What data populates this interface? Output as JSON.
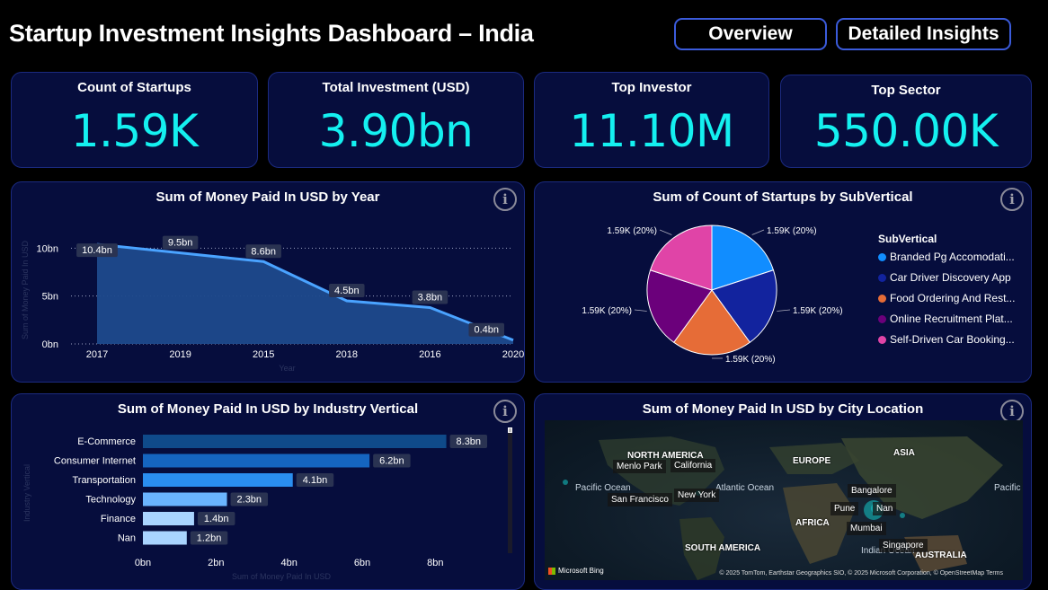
{
  "header": {
    "title": "Startup Investment Insights Dashboard – India",
    "nav": [
      "Overview",
      "Detailed Insights"
    ]
  },
  "kpis": [
    {
      "label": "Count of Startups",
      "value": "1.59K"
    },
    {
      "label": "Total Investment (USD)",
      "value": "3.90bn"
    },
    {
      "label": "Top Investor",
      "value": "11.10M"
    },
    {
      "label": "Top Sector",
      "value": "550.00K"
    }
  ],
  "info_glyph": "i",
  "colors": {
    "background": "#000000",
    "card": "#060d3d",
    "accent": "#14f0f0",
    "line": "#4aa3ff",
    "area": "#1e4a8c"
  },
  "charts": {
    "year": {
      "title": "Sum of Money Paid In USD by Year",
      "xlabel": "Year",
      "ylabel": "Sum of Money Paid In USD"
    },
    "subvertical": {
      "title": "Sum of Count of Startups by SubVertical",
      "legend_title": "SubVertical"
    },
    "vertical": {
      "title": "Sum of Money Paid In USD by Industry Vertical",
      "xlabel": "Sum of Money Paid In USD",
      "ylabel": "Industry Vertical"
    },
    "map": {
      "title": "Sum of Money Paid In USD by City Location",
      "continents": [
        "NORTH AMERICA",
        "EUROPE",
        "ASIA",
        "AFRICA",
        "SOUTH AMERICA",
        "AUSTRALIA"
      ],
      "oceans": [
        "Pacific Ocean",
        "Atlantic Ocean",
        "Indian Ocean",
        "Pacific Ocean"
      ],
      "cities": [
        "Menlo Park",
        "California",
        "San Francisco",
        "New York",
        "Bangalore",
        "Pune",
        "Nan",
        "Mumbai",
        "Singapore"
      ],
      "credit": "© 2025 TomTom, Earthstar Geographics SIO, © 2025 Microsoft Corporation, © OpenStreetMap  Terms",
      "logo": "Microsoft Bing"
    }
  },
  "chart_data": [
    {
      "type": "area",
      "title": "Sum of Money Paid In USD by Year",
      "xlabel": "Year",
      "ylabel": "Sum of Money Paid In USD",
      "categories": [
        "2017",
        "2019",
        "2015",
        "2018",
        "2016",
        "2020"
      ],
      "values": [
        10.4,
        9.5,
        8.6,
        4.5,
        3.8,
        0.4
      ],
      "data_labels": [
        "10.4bn",
        "9.5bn",
        "8.6bn",
        "4.5bn",
        "3.8bn",
        "0.4bn"
      ],
      "yticks": [
        "0bn",
        "5bn",
        "10bn"
      ],
      "ylim": [
        0,
        12
      ],
      "grid": true
    },
    {
      "type": "pie",
      "title": "Sum of Count of Startups by SubVertical",
      "legend_title": "SubVertical",
      "legend_position": "right",
      "slices": [
        {
          "name": "Branded Pg Accomodati...",
          "value": 20,
          "label": "1.59K (20%)",
          "color": "#118dff"
        },
        {
          "name": "Car Driver Discovery App",
          "value": 20,
          "label": "1.59K (20%)",
          "color": "#12239e"
        },
        {
          "name": "Food Ordering And Rest...",
          "value": 20,
          "label": "1.59K (20%)",
          "color": "#e66c37"
        },
        {
          "name": "Online Recruitment Plat...",
          "value": 20,
          "label": "1.59K (20%)",
          "color": "#6b007b"
        },
        {
          "name": "Self-Driven Car Booking...",
          "value": 20,
          "label": "1.59K (20%)",
          "color": "#e044a7"
        }
      ]
    },
    {
      "type": "bar",
      "orientation": "horizontal",
      "title": "Sum of Money Paid In USD by Industry Vertical",
      "xlabel": "Sum of Money Paid In USD",
      "ylabel": "Industry Vertical",
      "categories": [
        "E-Commerce",
        "Consumer Internet",
        "Transportation",
        "Technology",
        "Finance",
        "Nan"
      ],
      "values": [
        8.3,
        6.2,
        4.1,
        2.3,
        1.4,
        1.2
      ],
      "data_labels": [
        "8.3bn",
        "6.2bn",
        "4.1bn",
        "2.3bn",
        "1.4bn",
        "1.2bn"
      ],
      "bar_colors": [
        "#0f4a8a",
        "#1565c0",
        "#2a8ef0",
        "#6ab4ff",
        "#a9d4ff",
        "#a9d4ff"
      ],
      "xticks": [
        "0bn",
        "2bn",
        "4bn",
        "6bn",
        "8bn"
      ],
      "xlim": [
        0,
        9
      ]
    },
    {
      "type": "map",
      "title": "Sum of Money Paid In USD by City Location"
    }
  ]
}
